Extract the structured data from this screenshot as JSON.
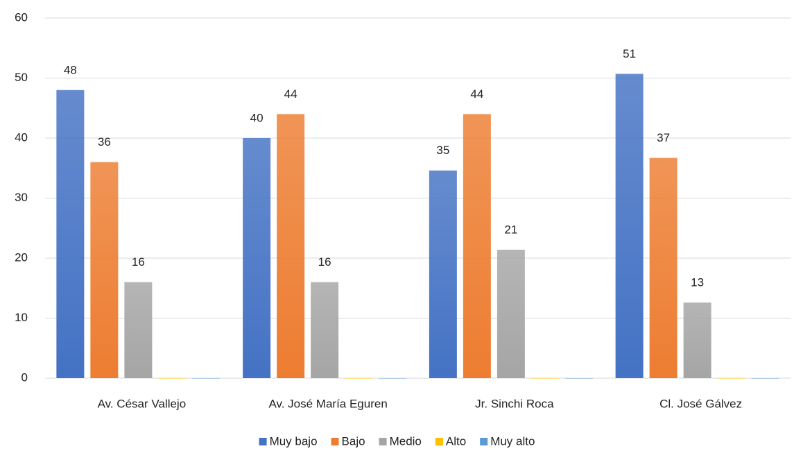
{
  "chart_data": {
    "type": "bar",
    "categories": [
      "Av. César Vallejo",
      "Av. José María Eguren",
      "Jr. Sinchi Roca",
      "Cl. José Gálvez"
    ],
    "series": [
      {
        "name": "Muy bajo",
        "color": "#4472c4",
        "values": [
          48,
          40,
          34.6,
          50.7
        ],
        "value_labels": [
          "48",
          "40",
          "35",
          "51"
        ]
      },
      {
        "name": "Bajo",
        "color": "#ed7d31",
        "values": [
          36,
          44,
          44,
          36.7
        ],
        "value_labels": [
          "36",
          "44",
          "44",
          "37"
        ]
      },
      {
        "name": "Medio",
        "color": "#a5a5a5",
        "values": [
          16,
          16,
          21.4,
          12.6
        ],
        "value_labels": [
          "16",
          "16",
          "21",
          "13"
        ]
      },
      {
        "name": "Alto",
        "color": "#ffc000",
        "values": [
          0,
          0,
          0,
          0
        ]
      },
      {
        "name": "Muy alto",
        "color": "#5b9bd5",
        "values": [
          0,
          0,
          0,
          0
        ]
      }
    ],
    "ylim": [
      0,
      60
    ],
    "yticks": [
      0,
      10,
      20,
      30,
      40,
      50,
      60
    ],
    "grid": true,
    "legend": "bottom"
  }
}
